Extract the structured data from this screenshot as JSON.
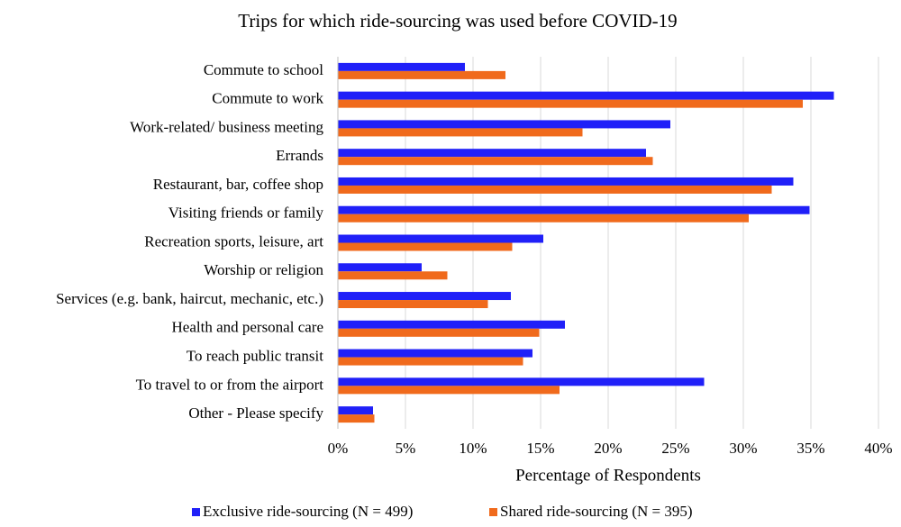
{
  "chart_data": {
    "type": "hbar",
    "title": "Trips for which ride-sourcing was used before COVID-19",
    "x_label": "Percentage of Respondents",
    "categories": [
      "Commute to school",
      "Commute to work",
      "Work-related/ business meeting",
      "Errands",
      "Restaurant, bar, coffee shop",
      "Visiting friends or family",
      "Recreation sports, leisure, art",
      "Worship or religion",
      "Services (e.g. bank, haircut, mechanic, etc.)",
      "Health and personal care",
      "To reach public transit",
      "To travel to or from the airport",
      "Other - Please specify"
    ],
    "series": [
      {
        "name": "Exclusive ride-sourcing (N = 499)",
        "color": "#2020f8",
        "values": [
          9.4,
          36.7,
          24.6,
          22.8,
          33.7,
          34.9,
          15.2,
          6.2,
          12.8,
          16.8,
          14.4,
          27.1,
          2.6
        ]
      },
      {
        "name": "Shared ride-sourcing (N = 395)",
        "color": "#f06a1c",
        "values": [
          12.4,
          34.4,
          18.1,
          23.3,
          32.1,
          30.4,
          12.9,
          8.1,
          11.1,
          14.9,
          13.7,
          16.4,
          2.7
        ]
      }
    ],
    "xlim": [
      0,
      40
    ],
    "xticks": [
      {
        "value": 0,
        "label": "0%"
      },
      {
        "value": 5,
        "label": "5%"
      },
      {
        "value": 10,
        "label": "10%"
      },
      {
        "value": 15,
        "label": "15%"
      },
      {
        "value": 20,
        "label": "20%"
      },
      {
        "value": 25,
        "label": "25%"
      },
      {
        "value": 30,
        "label": "30%"
      },
      {
        "value": 35,
        "label": "35%"
      },
      {
        "value": 40,
        "label": "40%"
      }
    ],
    "grid": true,
    "legend": "bottom"
  }
}
